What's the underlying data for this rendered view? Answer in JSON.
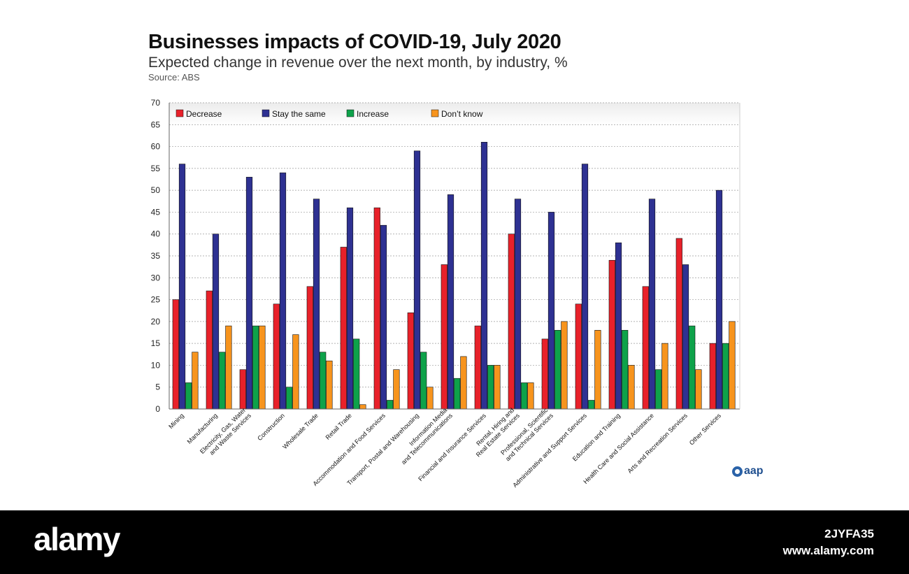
{
  "header": {
    "title": "Businesses impacts of COVID-19, July 2020",
    "subtitle": "Expected change in revenue over the next month, by industry, %",
    "source": "Source: ABS"
  },
  "logo": {
    "text": "aap"
  },
  "footer": {
    "watermark": "alamy",
    "image_id": "2JYFA35",
    "url": "www.alamy.com"
  },
  "chart_data": {
    "type": "bar",
    "title": "Businesses impacts of COVID-19, July 2020",
    "subtitle": "Expected change in revenue over the next month, by industry, %",
    "xlabel": "",
    "ylabel": "",
    "ylim": [
      0,
      70
    ],
    "yticks": [
      0,
      5,
      10,
      15,
      20,
      25,
      30,
      35,
      40,
      45,
      50,
      55,
      60,
      65,
      70
    ],
    "grid": true,
    "legend_position": "top",
    "categories": [
      [
        "Mining"
      ],
      [
        "Manufacturing"
      ],
      [
        "Electricity, Gas, Water",
        "and Waste Services"
      ],
      [
        "Construction"
      ],
      [
        "Wholesale Trade"
      ],
      [
        "Retail Trade"
      ],
      [
        "Accommodation and Food Services"
      ],
      [
        "Transport, Postal and Warehousing"
      ],
      [
        "Information Media",
        "and Telecommunications"
      ],
      [
        "Financial and Insurance Services"
      ],
      [
        "Rental, Hiring and",
        "Real Estate Services"
      ],
      [
        "Professional, Scientific",
        "and Technical Services"
      ],
      [
        "Administrative and Support Services"
      ],
      [
        "Education and Training"
      ],
      [
        "Health Care and Social Assistance"
      ],
      [
        "Arts and Recreation Services"
      ],
      [
        "Other Services"
      ]
    ],
    "series": [
      {
        "name": "Decrease",
        "color": "#e8212a",
        "values": [
          25,
          27,
          9,
          24,
          28,
          37,
          46,
          22,
          33,
          19,
          40,
          16,
          24,
          34,
          28,
          39,
          15
        ]
      },
      {
        "name": "Stay the same",
        "color": "#2e3192",
        "values": [
          56,
          40,
          53,
          54,
          48,
          46,
          42,
          59,
          49,
          61,
          48,
          45,
          56,
          38,
          48,
          33,
          50
        ]
      },
      {
        "name": "Increase",
        "color": "#0ea24a",
        "values": [
          6,
          13,
          19,
          5,
          13,
          16,
          2,
          13,
          7,
          10,
          6,
          18,
          2,
          18,
          9,
          19,
          15
        ]
      },
      {
        "name": "Don’t know",
        "color": "#f7941d",
        "values": [
          13,
          19,
          19,
          17,
          11,
          1,
          9,
          5,
          12,
          10,
          6,
          20,
          18,
          10,
          15,
          9,
          20
        ]
      }
    ]
  }
}
